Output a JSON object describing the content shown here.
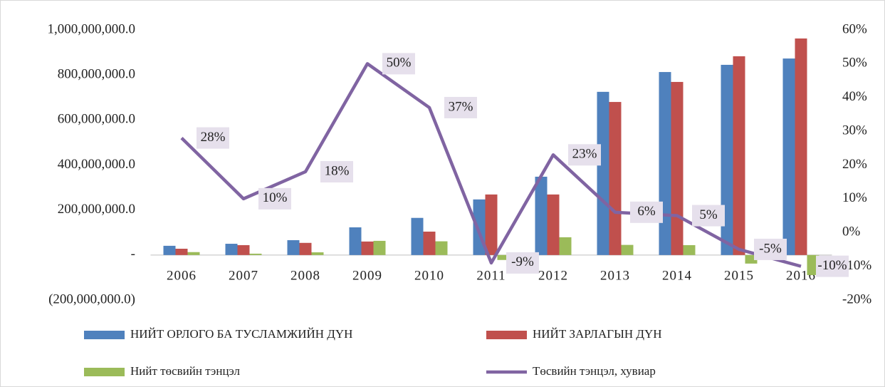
{
  "chart_data": {
    "type": "bar",
    "categories": [
      "2006",
      "2007",
      "2008",
      "2009",
      "2010",
      "2011",
      "2012",
      "2013",
      "2014",
      "2015",
      "2016"
    ],
    "series": [
      {
        "name": "НИЙТ ОРЛОГО БА ТУСЛАМЖИЙН ДҮН",
        "color": "#4f81bd",
        "values": [
          41000000,
          50000000,
          66000000,
          123000000,
          165000000,
          247000000,
          348000000,
          725000000,
          813000000,
          845000000,
          873000000
        ]
      },
      {
        "name": "НИЙТ ЗАРЛАГЫН ДҮН",
        "color": "#c0504d",
        "values": [
          28000000,
          44000000,
          54000000,
          60000000,
          104000000,
          269000000,
          269000000,
          680000000,
          769000000,
          883000000,
          962000000
        ]
      },
      {
        "name": "Нийт төсвийн тэнцэл",
        "color": "#9bbb59",
        "values": [
          13000000,
          6000000,
          12000000,
          63000000,
          61000000,
          -22000000,
          79000000,
          45000000,
          44000000,
          -38000000,
          -89000000
        ]
      },
      {
        "name": "Төсвийн тэнцэл, хувиар",
        "color": "#8064a2",
        "type": "line",
        "axis": "y2",
        "values": [
          28,
          10,
          18,
          50,
          37,
          -9,
          23,
          6,
          5,
          -5,
          -10
        ],
        "value_labels": [
          "28%",
          "10%",
          "18%",
          "50%",
          "37%",
          "-9%",
          "23%",
          "6%",
          "5%",
          "-5%",
          "-10%"
        ]
      }
    ],
    "ylim": [
      -200000000,
      1000000000
    ],
    "yticks": [
      {
        "value": 1000000000,
        "label": "1,000,000,000.0"
      },
      {
        "value": 800000000,
        "label": "800,000,000.0"
      },
      {
        "value": 600000000,
        "label": "600,000,000.0"
      },
      {
        "value": 400000000,
        "label": "400,000,000.0"
      },
      {
        "value": 200000000,
        "label": "200,000,000.0"
      },
      {
        "value": 0,
        "label": "-"
      },
      {
        "value": -200000000,
        "label": "(200,000,000.0)"
      }
    ],
    "y2lim": [
      -20,
      60
    ],
    "y2ticks": [
      {
        "value": 60,
        "label": "60%"
      },
      {
        "value": 50,
        "label": "50%"
      },
      {
        "value": 40,
        "label": "40%"
      },
      {
        "value": 30,
        "label": "30%"
      },
      {
        "value": 20,
        "label": "20%"
      },
      {
        "value": 10,
        "label": "10%"
      },
      {
        "value": 0,
        "label": "0%"
      },
      {
        "value": -10,
        "label": "-10%"
      },
      {
        "value": -20,
        "label": "-20%"
      }
    ],
    "grid": false,
    "legend": "bottom"
  }
}
